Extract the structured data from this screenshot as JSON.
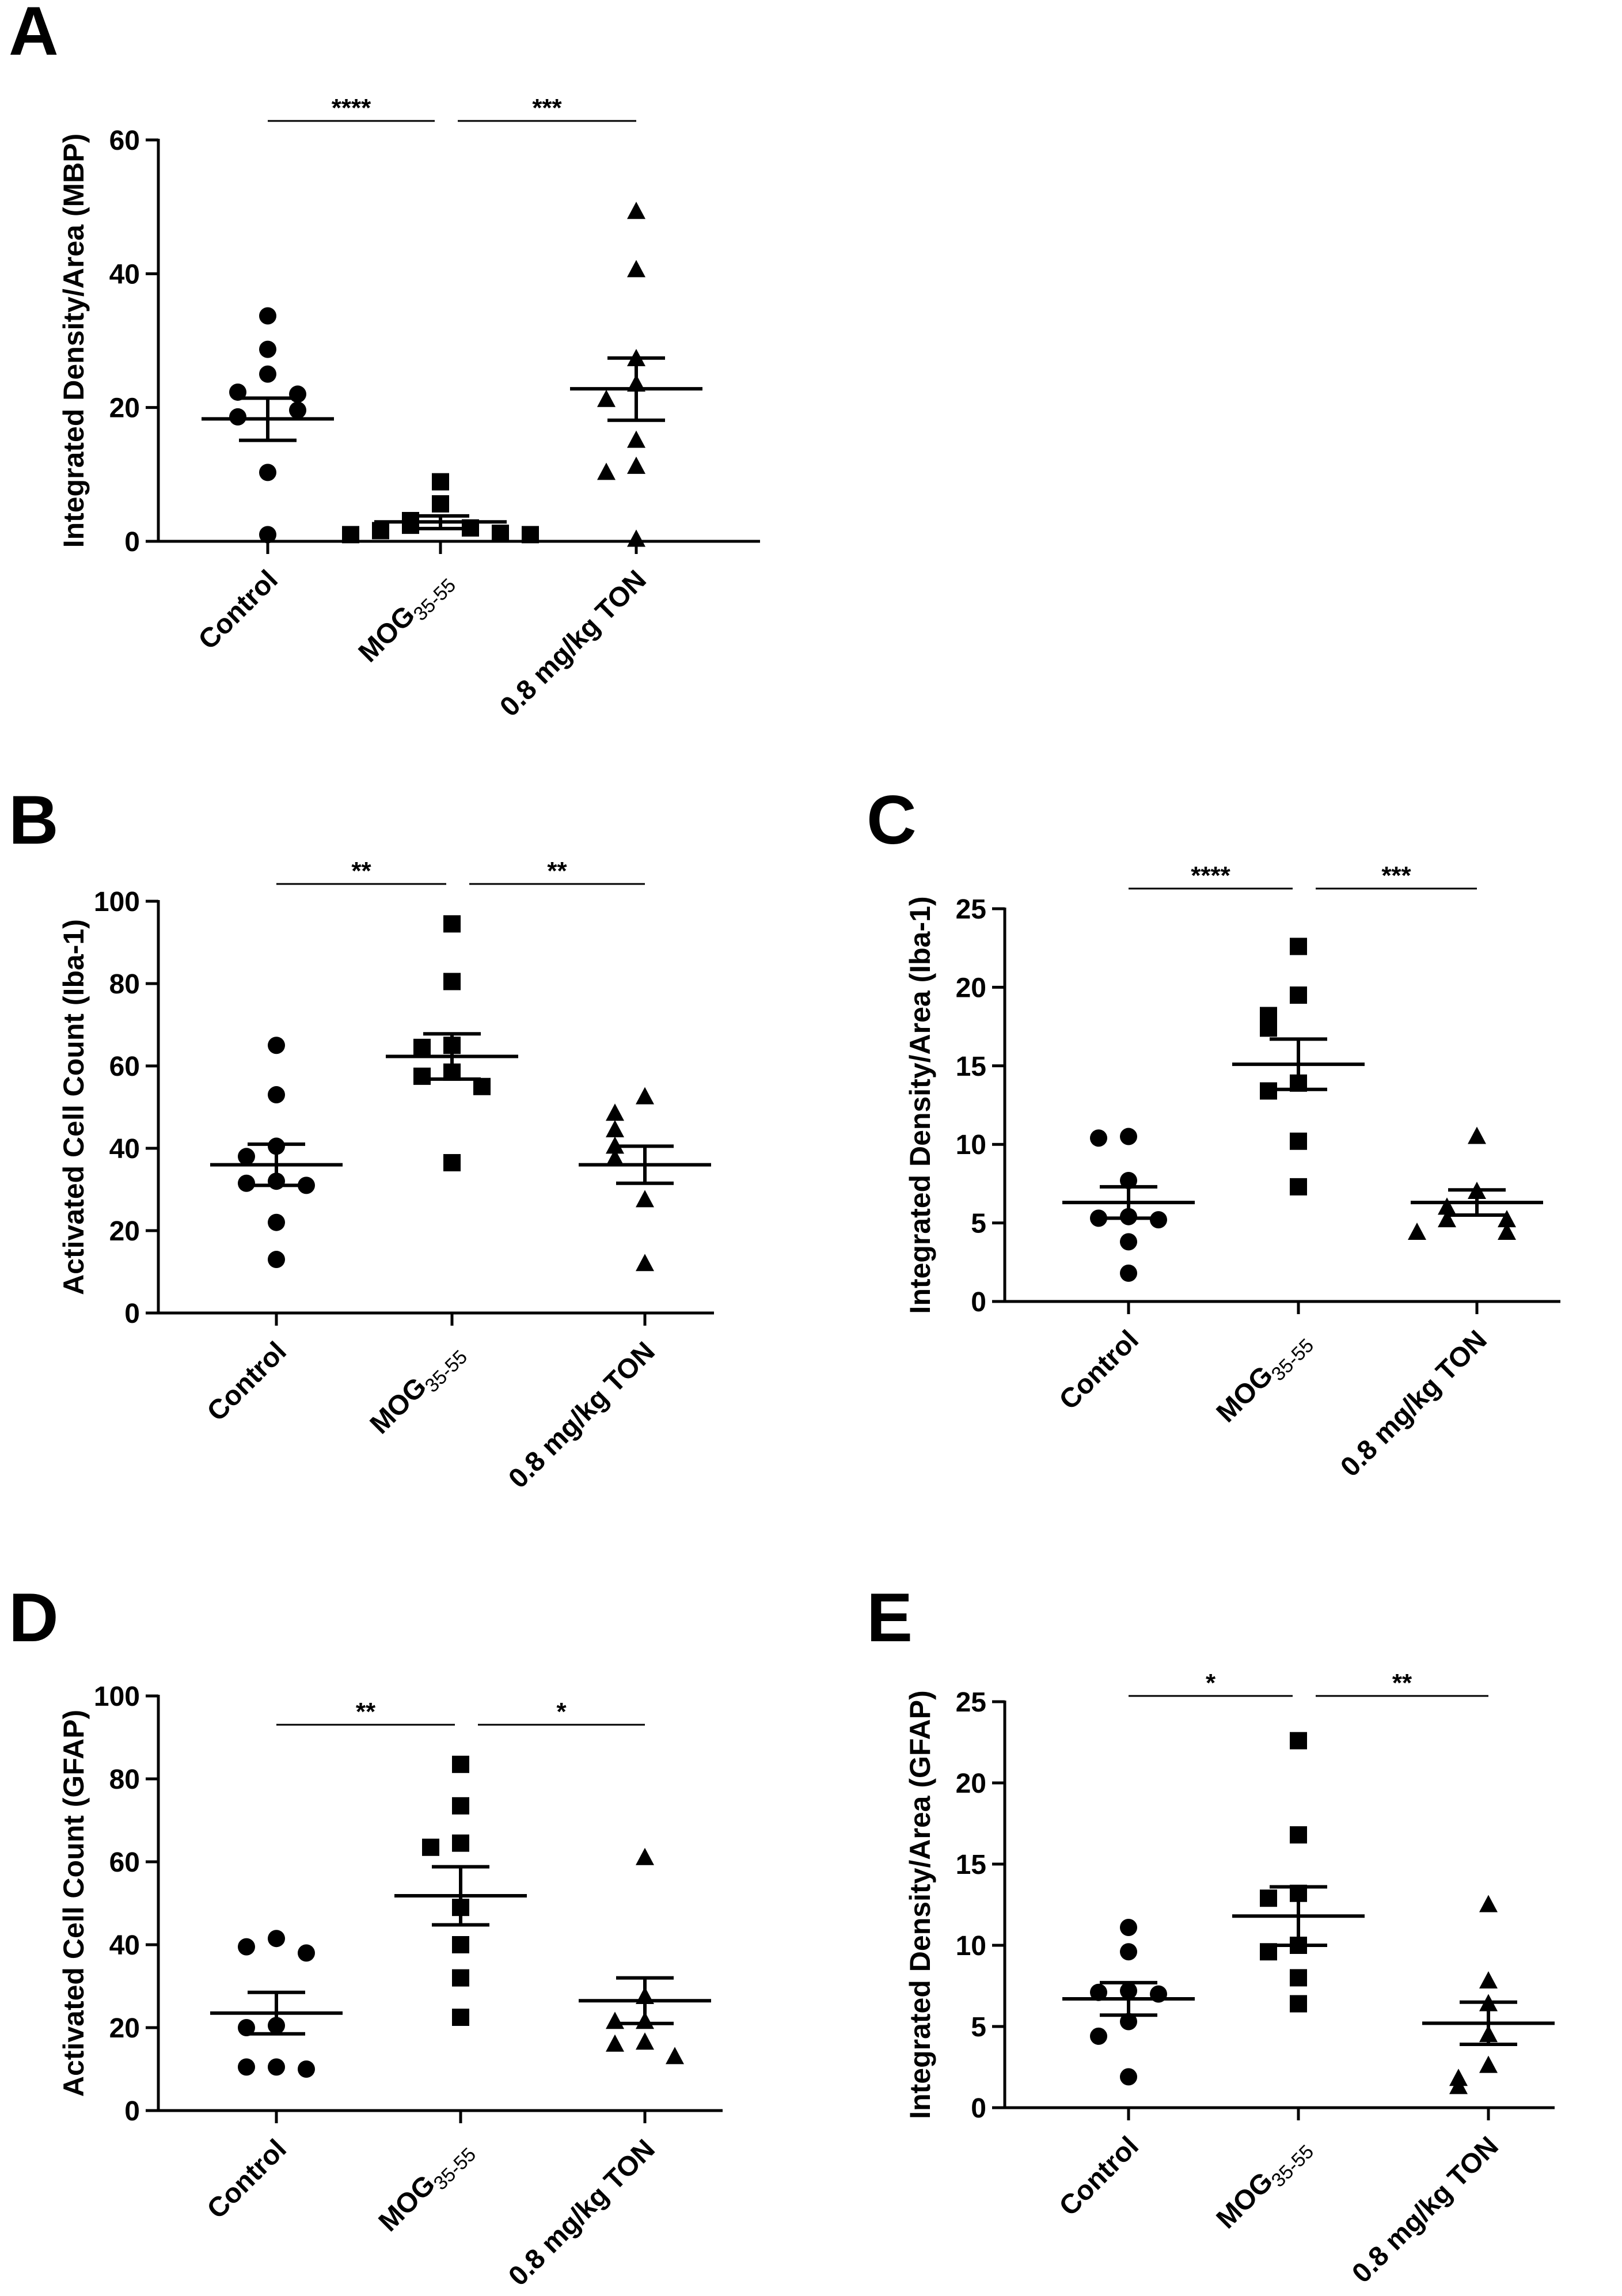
{
  "chart_data": [
    {
      "panel": "A",
      "type": "scatter",
      "ylabel": "Integrated Density/Area (MBP)",
      "ylim": [
        0,
        60
      ],
      "yticks": [
        0,
        20,
        40,
        60
      ],
      "categories": [
        "Control",
        "MOG35-55",
        "0.8 mg/kg TON"
      ],
      "category_labels": [
        {
          "main": "Control",
          "sub": ""
        },
        {
          "main": "MOG",
          "sub": "35-55"
        },
        {
          "main": "0.8 mg/kg TON",
          "sub": ""
        }
      ],
      "series": [
        {
          "name": "Control",
          "marker": "circle",
          "values": [
            33.7,
            28.7,
            25,
            22.3,
            22,
            19.6,
            18.6,
            10.3,
            1
          ],
          "mean": 18.3,
          "sem_low": 15.1,
          "sem_high": 21.4
        },
        {
          "name": "MOG35-55",
          "marker": "square",
          "values": [
            8.9,
            5.6,
            3.1,
            2.4,
            2,
            1.6,
            1.2,
            1,
            1
          ],
          "mean": 2.9,
          "sem_low": 1.9,
          "sem_high": 3.8
        },
        {
          "name": "0.8 mg/kg TON",
          "marker": "triangle",
          "values": [
            49.3,
            40.6,
            27.3,
            23.5,
            21.2,
            15.1,
            11.2,
            10.3,
            0.3
          ],
          "mean": 22.8,
          "sem_low": 18.1,
          "sem_high": 27.4
        }
      ],
      "significance": [
        {
          "from": 0,
          "to": 1,
          "label": "****"
        },
        {
          "from": 1,
          "to": 2,
          "label": "***"
        }
      ]
    },
    {
      "panel": "B",
      "type": "scatter",
      "ylabel": "Activated Cell Count (Iba-1)",
      "ylim": [
        0,
        100
      ],
      "yticks": [
        0,
        20,
        40,
        60,
        80,
        100
      ],
      "categories": [
        "Control",
        "MOG35-55",
        "0.8 mg/kg TON"
      ],
      "category_labels": [
        {
          "main": "Control",
          "sub": ""
        },
        {
          "main": "MOG",
          "sub": "35-55"
        },
        {
          "main": "0.8 mg/kg TON",
          "sub": ""
        }
      ],
      "series": [
        {
          "name": "Control",
          "marker": "circle",
          "values": [
            65,
            53,
            40.5,
            38,
            32,
            31.5,
            31,
            22,
            13
          ],
          "mean": 36,
          "sem_low": 31,
          "sem_high": 41
        },
        {
          "name": "MOG35-55",
          "marker": "square",
          "values": [
            94.5,
            80.5,
            65,
            64.5,
            58.5,
            57.5,
            55,
            36.5
          ],
          "mean": 62.3,
          "sem_low": 56.8,
          "sem_high": 67.8
        },
        {
          "name": "0.8 mg/kg TON",
          "marker": "triangle",
          "values": [
            52.5,
            48.5,
            44.5,
            40.5,
            37.5,
            27.5,
            12
          ],
          "mean": 36,
          "sem_low": 31.5,
          "sem_high": 40.5
        }
      ],
      "significance": [
        {
          "from": 0,
          "to": 1,
          "label": "**"
        },
        {
          "from": 1,
          "to": 2,
          "label": "**"
        }
      ]
    },
    {
      "panel": "C",
      "type": "scatter",
      "ylabel": "Integrated Density/Area (Iba-1)",
      "ylim": [
        0,
        25
      ],
      "yticks": [
        0,
        5,
        10,
        15,
        20,
        25
      ],
      "categories": [
        "Control",
        "MOG35-55",
        "0.8 mg/kg TON"
      ],
      "category_labels": [
        {
          "main": "Control",
          "sub": ""
        },
        {
          "main": "MOG",
          "sub": "35-55"
        },
        {
          "main": "0.8 mg/kg TON",
          "sub": ""
        }
      ],
      "series": [
        {
          "name": "Control",
          "marker": "circle",
          "values": [
            10.5,
            10.4,
            7.7,
            5.4,
            5.3,
            5.2,
            3.8,
            1.8
          ],
          "mean": 6.3,
          "sem_low": 5.3,
          "sem_high": 7.3
        },
        {
          "name": "MOG35-55",
          "marker": "square",
          "values": [
            22.6,
            19.5,
            18.2,
            17.4,
            13.9,
            13.4,
            10.2,
            7.3
          ],
          "mean": 15.1,
          "sem_low": 13.5,
          "sem_high": 16.7
        },
        {
          "name": "0.8 mg/kg TON",
          "marker": "triangle",
          "values": [
            10.5,
            7,
            6,
            5.2,
            5.2,
            4.4,
            4.4
          ],
          "mean": 6.3,
          "sem_low": 5.5,
          "sem_high": 7.1
        }
      ],
      "significance": [
        {
          "from": 0,
          "to": 1,
          "label": "****"
        },
        {
          "from": 1,
          "to": 2,
          "label": "***"
        }
      ]
    },
    {
      "panel": "D",
      "type": "scatter",
      "ylabel": "Activated Cell Count (GFAP)",
      "ylim": [
        0,
        100
      ],
      "yticks": [
        0,
        20,
        40,
        60,
        80,
        100
      ],
      "categories": [
        "Control",
        "MOG35-55",
        "0.8 mg/kg TON"
      ],
      "category_labels": [
        {
          "main": "Control",
          "sub": ""
        },
        {
          "main": "MOG",
          "sub": "35-55"
        },
        {
          "main": "0.8 mg/kg TON",
          "sub": ""
        }
      ],
      "series": [
        {
          "name": "Control",
          "marker": "circle",
          "values": [
            41.5,
            39.5,
            38,
            20.5,
            20,
            10.5,
            10.5,
            10
          ],
          "mean": 23.5,
          "sem_low": 18.5,
          "sem_high": 28.5
        },
        {
          "name": "MOG35-55",
          "marker": "square",
          "values": [
            83.5,
            73.5,
            64.5,
            63.5,
            49,
            40,
            32,
            22.5
          ],
          "mean": 51.8,
          "sem_low": 44.8,
          "sem_high": 58.8
        },
        {
          "name": "0.8 mg/kg TON",
          "marker": "triangle",
          "values": [
            61,
            27.5,
            21.5,
            21.5,
            16.5,
            16,
            13
          ],
          "mean": 26.5,
          "sem_low": 21,
          "sem_high": 32
        },
        {
          "name": "",
          "marker": "none",
          "values": []
        }
      ],
      "significance": [
        {
          "from": 0,
          "to": 1,
          "label": "**"
        },
        {
          "from": 1,
          "to": 2,
          "label": "*"
        }
      ]
    },
    {
      "panel": "E",
      "type": "scatter",
      "ylabel": "Integrated Density/Area (GFAP)",
      "ylim": [
        0,
        25
      ],
      "yticks": [
        0,
        5,
        10,
        15,
        20,
        25
      ],
      "categories": [
        "Control",
        "MOG35-55",
        "0.8 mg/kg TON"
      ],
      "category_labels": [
        {
          "main": "Control",
          "sub": ""
        },
        {
          "main": "MOG",
          "sub": "35-55"
        },
        {
          "main": "0.8 mg/kg TON",
          "sub": ""
        }
      ],
      "series": [
        {
          "name": "Control",
          "marker": "circle",
          "values": [
            11.1,
            9.6,
            7.2,
            7.1,
            7,
            5.3,
            4.4,
            1.9
          ],
          "mean": 6.7,
          "sem_low": 5.7,
          "sem_high": 7.7
        },
        {
          "name": "MOG35-55",
          "marker": "square",
          "values": [
            22.6,
            16.8,
            13.2,
            12.9,
            10,
            9.6,
            8,
            6.4
          ],
          "mean": 11.8,
          "sem_low": 10,
          "sem_high": 13.6
        },
        {
          "name": "0.8 mg/kg TON",
          "marker": "triangle",
          "values": [
            12.5,
            7.8,
            6.4,
            4.5,
            2.6,
            1.8,
            1.3
          ],
          "mean": 5.2,
          "sem_low": 3.9,
          "sem_high": 6.5
        }
      ],
      "significance": [
        {
          "from": 0,
          "to": 1,
          "label": "*"
        },
        {
          "from": 1,
          "to": 2,
          "label": "**"
        }
      ]
    }
  ]
}
